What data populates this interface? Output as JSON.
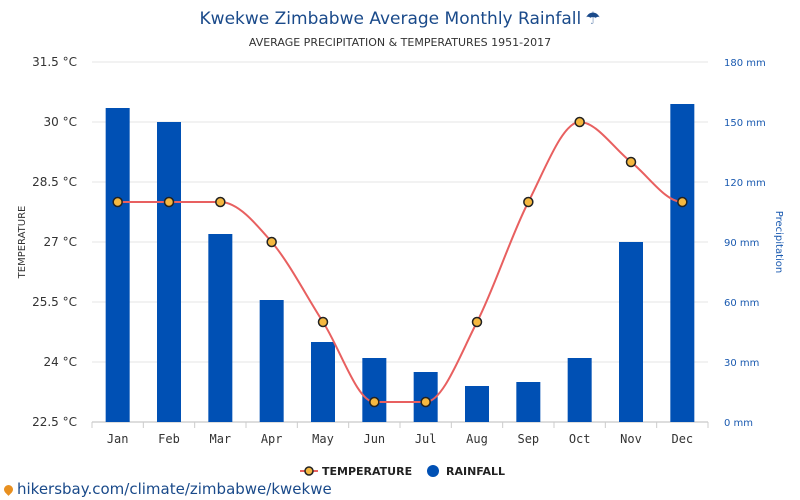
{
  "title": "Kwekwe Zimbabwe Average Monthly Rainfall",
  "title_icon": "umbrella-icon",
  "subtitle": "AVERAGE PRECIPITATION & TEMPERATURES 1951-2017",
  "footer_link": "hikersbay.com/climate/zimbabwe/kwekwe",
  "colors": {
    "bar": "#0050b4",
    "line": "#e86060",
    "marker_fill": "#f5b840",
    "marker_stroke": "#222222",
    "title": "#1a4a8a",
    "right_axis": "#1a5ab0"
  },
  "chart_data": {
    "type": "bar",
    "categories": [
      "Jan",
      "Feb",
      "Mar",
      "Apr",
      "May",
      "Jun",
      "Jul",
      "Aug",
      "Sep",
      "Oct",
      "Nov",
      "Dec"
    ],
    "series": [
      {
        "name": "RAINFALL",
        "type": "bar",
        "axis": "right",
        "values": [
          157,
          150,
          94,
          61,
          40,
          32,
          25,
          18,
          20,
          32,
          90,
          159
        ]
      },
      {
        "name": "TEMPERATURE",
        "type": "line",
        "axis": "left",
        "values": [
          28,
          28,
          28,
          27,
          25,
          23,
          23,
          25,
          28,
          30,
          29,
          28
        ]
      }
    ],
    "y_left": {
      "label": "TEMPERATURE",
      "range": [
        22.5,
        31.5
      ],
      "ticks": [
        22.5,
        24,
        25.5,
        27,
        28.5,
        30,
        31.5
      ],
      "tick_labels": [
        "22.5 °C",
        "24 °C",
        "25.5 °C",
        "27 °C",
        "28.5 °C",
        "30 °C",
        "31.5 °C"
      ]
    },
    "y_right": {
      "label": "Precipitation",
      "range": [
        0,
        180
      ],
      "ticks": [
        0,
        30,
        60,
        90,
        120,
        150,
        180
      ],
      "tick_labels": [
        "0 mm",
        "30 mm",
        "60 mm",
        "90 mm",
        "120 mm",
        "150 mm",
        "180 mm"
      ]
    },
    "grid": true,
    "legend": {
      "position": "bottom",
      "entries": [
        "TEMPERATURE",
        "RAINFALL"
      ]
    }
  }
}
